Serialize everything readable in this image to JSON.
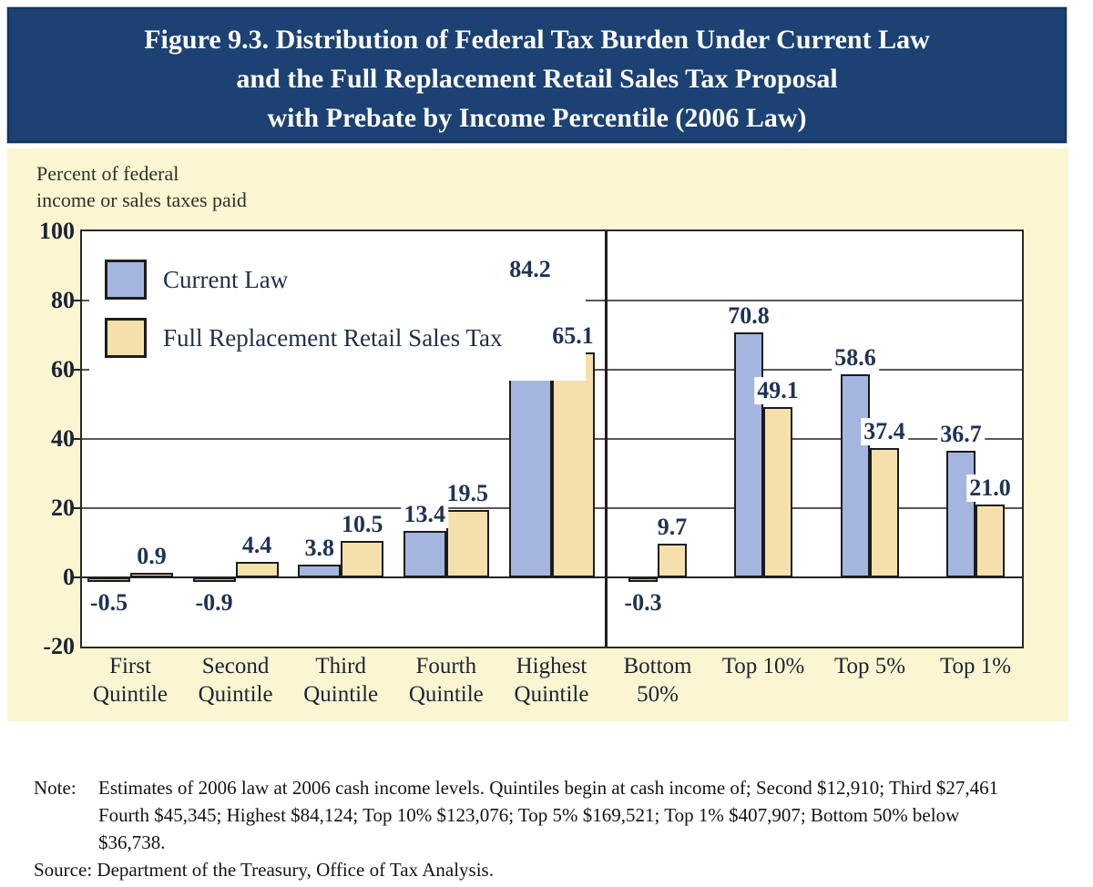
{
  "title": {
    "line1": "Figure 9.3. Distribution of Federal Tax Burden Under Current Law",
    "line2": "and the Full Replacement Retail Sales Tax Proposal",
    "line3": "with Prebate by Income Percentile (2006 Law)"
  },
  "chart_data": {
    "type": "bar",
    "title": "Figure 9.3. Distribution of Federal Tax Burden Under Current Law and the Full Replacement Retail Sales Tax Proposal with Prebate by Income Percentile (2006 Law)",
    "y_axis_title_lines": [
      "Percent of federal",
      "income or sales taxes paid"
    ],
    "ylim": [
      -20,
      100
    ],
    "yticks": [
      100,
      80,
      60,
      40,
      20,
      0,
      -20
    ],
    "gridlines": [
      80,
      60,
      40,
      20
    ],
    "grid": true,
    "legend_position": "inside-top-left",
    "panel_divider_between": [
      "Highest Quintile",
      "Bottom 50%"
    ],
    "categories": [
      "First Quintile",
      "Second Quintile",
      "Third Quintile",
      "Fourth Quintile",
      "Highest Quintile",
      "Bottom 50%",
      "Top 10%",
      "Top 5%",
      "Top 1%"
    ],
    "category_label_lines": [
      [
        "First",
        "Quintile"
      ],
      [
        "Second",
        "Quintile"
      ],
      [
        "Third",
        "Quintile"
      ],
      [
        "Fourth",
        "Quintile"
      ],
      [
        "Highest",
        "Quintile"
      ],
      [
        "Bottom",
        "50%"
      ],
      [
        "Top 10%"
      ],
      [
        "Top 5%"
      ],
      [
        "Top 1%"
      ]
    ],
    "series": [
      {
        "name": "Current Law",
        "color": "#A4B6DF",
        "values": [
          -0.5,
          -0.9,
          3.8,
          13.4,
          84.2,
          -0.3,
          70.8,
          58.6,
          36.7
        ]
      },
      {
        "name": "Full Replacement Retail Sales Tax",
        "color": "#F5E0AC",
        "values": [
          0.9,
          4.4,
          10.5,
          19.5,
          65.1,
          9.7,
          49.1,
          37.4,
          21.0
        ]
      }
    ],
    "value_label_format": "one_decimal"
  },
  "notes": {
    "note_label": "Note:",
    "note_lines": [
      "Estimates of 2006 law at 2006 cash income levels.  Quintiles begin at cash income of; Second $12,910; Third $27,461",
      "Fourth $45,345; Highest $84,124; Top 10% $123,076; Top 5% $169,521; Top 1% $407,907; Bottom 50% below",
      "$36,738."
    ],
    "source": "Source: Department of the Treasury, Office of Tax Analysis."
  },
  "colors": {
    "title_bg": "#1C4173",
    "panel_bg": "#FBF5D1",
    "bar_border": "#1C1C1C",
    "current_law": "#A4B6DF",
    "sales_tax": "#F5E0AC"
  }
}
